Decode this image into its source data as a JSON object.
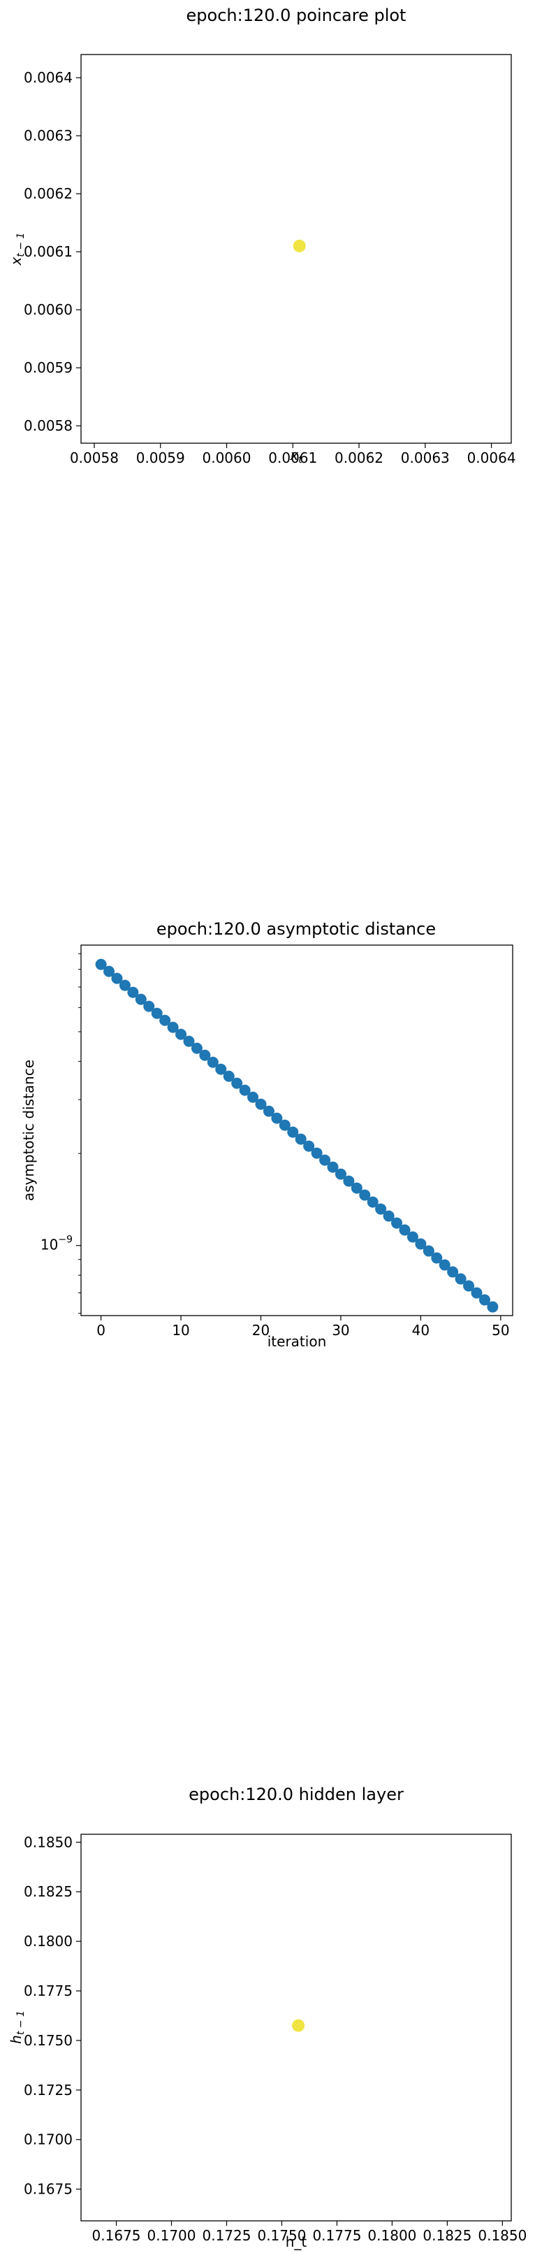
{
  "chart_data": [
    {
      "type": "scatter",
      "title": "epoch:120.0 poincare plot",
      "xlabel": "x_t",
      "ylabel": "x_{t-1}",
      "xlim": [
        0.00578,
        0.00643
      ],
      "ylim": [
        0.00577,
        0.00644
      ],
      "xticks": [
        0.0058,
        0.0059,
        0.006,
        0.0061,
        0.0062,
        0.0063,
        0.0064
      ],
      "xtick_labels": [
        "0.0058",
        "0.0059",
        "0.0060",
        "0.0061",
        "0.0062",
        "0.0063",
        "0.0064"
      ],
      "yticks": [
        0.0058,
        0.0059,
        0.006,
        0.0061,
        0.0062,
        0.0063,
        0.0064
      ],
      "ytick_labels": [
        "0.0058",
        "0.0059",
        "0.0060",
        "0.0061",
        "0.0062",
        "0.0063",
        "0.0064"
      ],
      "points": [
        {
          "x": 0.00611,
          "y": 0.00611
        }
      ],
      "point_color": "#f0e442",
      "grid": false
    },
    {
      "type": "scatter",
      "title": "epoch:120.0 asymptotic distance",
      "xlabel": "iteration",
      "ylabel": "asymptotic distance",
      "yscale": "log",
      "xlim": [
        -2.5,
        51.5
      ],
      "ylim": [
        5.9e-10,
        9.6e-09
      ],
      "xticks": [
        0,
        10,
        20,
        30,
        40,
        50
      ],
      "xtick_labels": [
        "0",
        "10",
        "20",
        "30",
        "40",
        "50"
      ],
      "y_major_ticks": [
        1e-09
      ],
      "ytick_labels": [
        "10^-9"
      ],
      "y_minor_ticks": [
        6e-10,
        7e-10,
        8e-10,
        9e-10,
        2e-09,
        3e-09,
        4e-09,
        5e-09,
        6e-09,
        7e-09,
        8e-09,
        9e-09
      ],
      "x": [
        0,
        1,
        2,
        3,
        4,
        5,
        6,
        7,
        8,
        9,
        10,
        11,
        12,
        13,
        14,
        15,
        16,
        17,
        18,
        19,
        20,
        21,
        22,
        23,
        24,
        25,
        26,
        27,
        28,
        29,
        30,
        31,
        32,
        33,
        34,
        35,
        36,
        37,
        38,
        39,
        40,
        41,
        42,
        43,
        44,
        45,
        46,
        47,
        48,
        49
      ],
      "y_start": 8.3e-09,
      "y_end": 6.3e-10,
      "point_color": "#1f77b4",
      "grid": false
    },
    {
      "type": "scatter",
      "title": "epoch:120.0 hidden layer",
      "xlabel": "h_t",
      "ylabel": "h_{t-1}",
      "xlim": [
        0.1659,
        0.1854
      ],
      "ylim": [
        0.1659,
        0.1854
      ],
      "xticks": [
        0.1675,
        0.17,
        0.1725,
        0.175,
        0.1775,
        0.18,
        0.1825,
        0.185
      ],
      "xtick_labels": [
        "0.1675",
        "0.1700",
        "0.1725",
        "0.1750",
        "0.1775",
        "0.1800",
        "0.1825",
        "0.1850"
      ],
      "yticks": [
        0.1675,
        0.17,
        0.1725,
        0.175,
        0.1775,
        0.18,
        0.1825,
        0.185
      ],
      "ytick_labels": [
        "0.1675",
        "0.1700",
        "0.1725",
        "0.1750",
        "0.1775",
        "0.1800",
        "0.1825",
        "0.1850"
      ],
      "points": [
        {
          "x": 0.17575,
          "y": 0.17575
        }
      ],
      "point_color": "#f0e442",
      "grid": false
    }
  ]
}
